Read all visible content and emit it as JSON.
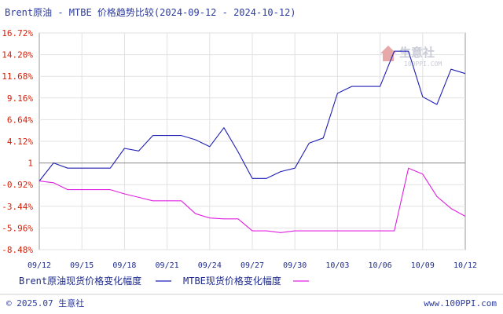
{
  "chart_data": {
    "type": "line",
    "title": "Brent原油 - MTBE 价格趋势比较(2024-09-12 - 2024-10-12)",
    "x_tick_labels": [
      "09/12",
      "09/15",
      "09/18",
      "09/21",
      "09/24",
      "09/27",
      "09/30",
      "10/03",
      "10/06",
      "10/09",
      "10/12"
    ],
    "y_tick_labels": [
      "16.72%",
      "14.20%",
      "11.68%",
      "9.16%",
      "6.64%",
      "4.12%",
      "1",
      "-0.92%",
      "-3.44%",
      "-5.96%",
      "-8.48%"
    ],
    "ylim": [
      -8.48,
      16.72
    ],
    "x_range": [
      "2024-09-12",
      "2024-10-12"
    ],
    "baseline": 1.6,
    "grid": true,
    "legend_position": "bottom",
    "series": [
      {
        "name": "Brent原油现货价格变化幅度",
        "color": "#1f1fb4",
        "x": [
          "2024-09-12",
          "2024-09-13",
          "2024-09-14",
          "2024-09-15",
          "2024-09-16",
          "2024-09-17",
          "2024-09-18",
          "2024-09-19",
          "2024-09-20",
          "2024-09-21",
          "2024-09-22",
          "2024-09-23",
          "2024-09-24",
          "2024-09-25",
          "2024-09-26",
          "2024-09-27",
          "2024-09-28",
          "2024-09-29",
          "2024-09-30",
          "2024-10-01",
          "2024-10-02",
          "2024-10-03",
          "2024-10-04",
          "2024-10-05",
          "2024-10-06",
          "2024-10-07",
          "2024-10-08",
          "2024-10-09",
          "2024-10-10",
          "2024-10-11",
          "2024-10-12"
        ],
        "values": [
          -0.5,
          1.6,
          1.0,
          1.0,
          1.0,
          1.0,
          3.3,
          3.0,
          4.8,
          4.8,
          4.8,
          4.3,
          3.5,
          5.7,
          2.9,
          -0.2,
          -0.2,
          0.6,
          1.0,
          3.9,
          4.5,
          9.7,
          10.5,
          10.5,
          10.5,
          14.6,
          14.6,
          9.3,
          8.4,
          12.5,
          12.0
        ]
      },
      {
        "name": "MTBE现货价格变化幅度",
        "color": "#e020e0",
        "x": [
          "2024-09-12",
          "2024-09-13",
          "2024-09-14",
          "2024-09-15",
          "2024-09-16",
          "2024-09-17",
          "2024-09-18",
          "2024-09-19",
          "2024-09-20",
          "2024-09-21",
          "2024-09-22",
          "2024-09-23",
          "2024-09-24",
          "2024-09-25",
          "2024-09-26",
          "2024-09-27",
          "2024-09-28",
          "2024-09-29",
          "2024-09-30",
          "2024-10-01",
          "2024-10-02",
          "2024-10-03",
          "2024-10-04",
          "2024-10-05",
          "2024-10-06",
          "2024-10-07",
          "2024-10-08",
          "2024-10-09",
          "2024-10-10",
          "2024-10-11",
          "2024-10-12"
        ],
        "values": [
          -0.5,
          -0.7,
          -1.5,
          -1.5,
          -1.5,
          -1.5,
          -2.0,
          -2.4,
          -2.8,
          -2.8,
          -2.8,
          -4.3,
          -4.8,
          -4.9,
          -4.9,
          -6.3,
          -6.3,
          -6.5,
          -6.3,
          -6.3,
          -6.3,
          -6.3,
          -6.3,
          -6.3,
          -6.3,
          -6.3,
          1.0,
          0.3,
          -2.3,
          -3.7,
          -4.6
        ]
      }
    ]
  },
  "legend": {
    "items": [
      {
        "label": "Brent原油现货价格变化幅度",
        "color": "#1f1fb4"
      },
      {
        "label": "MTBE现货价格变化幅度",
        "color": "#e020e0"
      }
    ]
  },
  "footer": {
    "left": "© 2025.07 生意社",
    "right": "www.100PPI.com"
  },
  "watermark": {
    "name": "生意社",
    "site": "100PPI.COM"
  }
}
